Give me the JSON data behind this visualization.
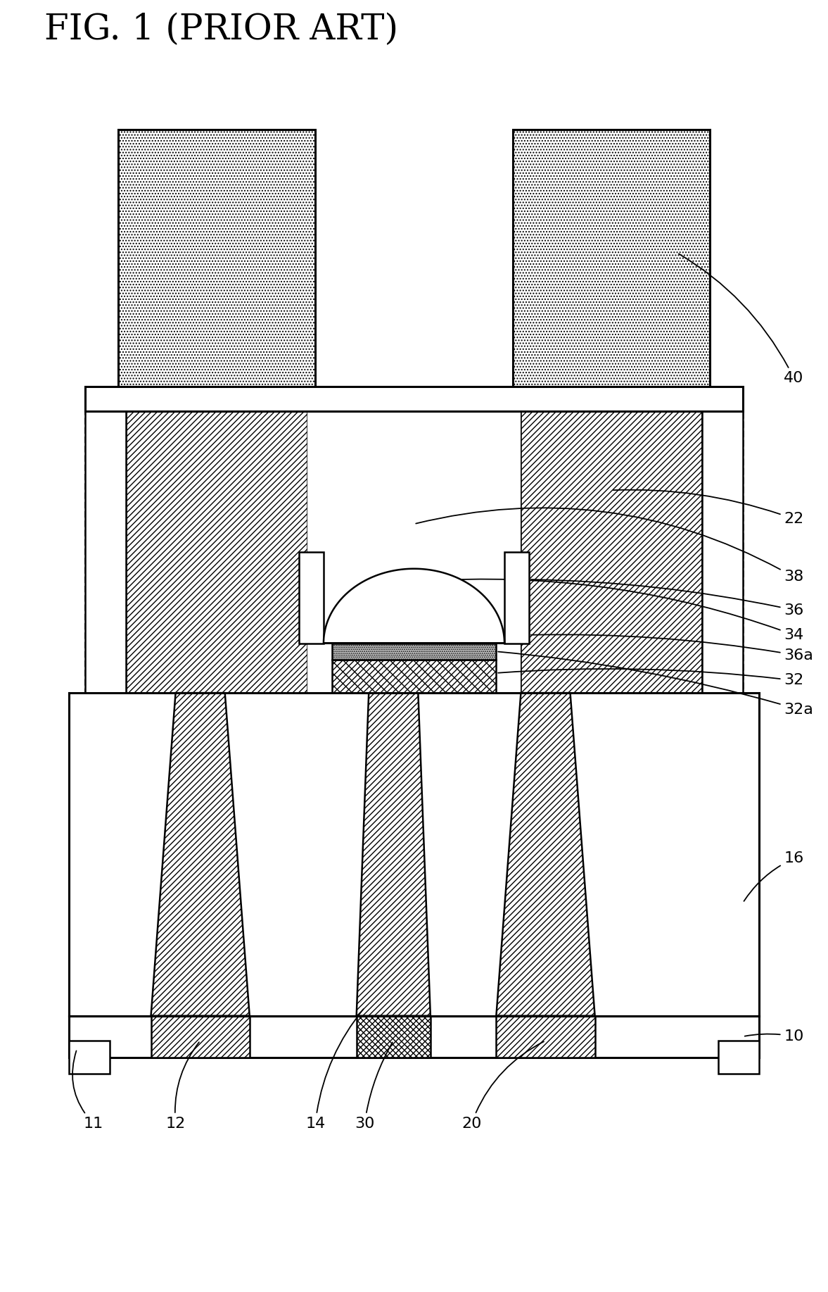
{
  "title": "FIG. 1 (PRIOR ART)",
  "bg_color": "#ffffff",
  "line_color": "#000000",
  "fig_w": 11.77,
  "fig_h": 18.35,
  "dpi": 100,
  "label_fontsize": 16,
  "title_fontsize": 36
}
